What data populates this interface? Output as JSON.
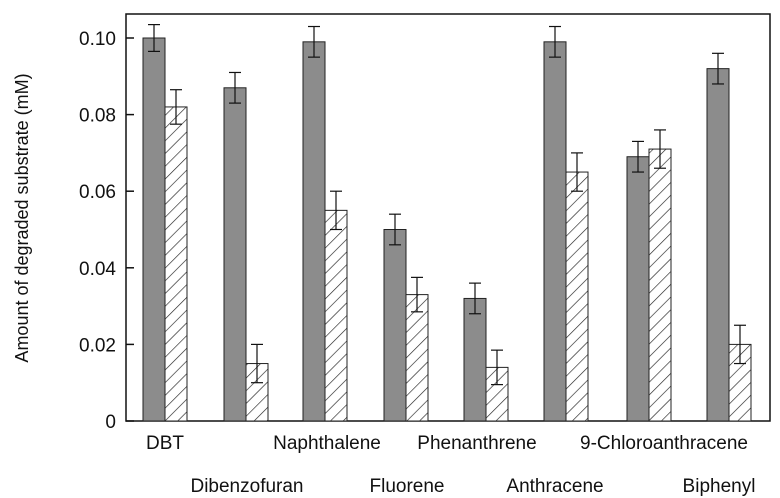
{
  "chart_data": {
    "type": "bar",
    "title": "",
    "xlabel": "",
    "ylabel": "Amount of degraded substrate (mM)",
    "ylim": [
      0,
      0.105
    ],
    "yticks": [
      "0",
      "0.02",
      "0.04",
      "0.06",
      "0.08",
      "0.10"
    ],
    "ytick_values": [
      0,
      0.02,
      0.04,
      0.06,
      0.08,
      0.1
    ],
    "grid": false,
    "legend": "none",
    "categories": [
      "DBT",
      "Dibenzofuran",
      "Naphthalene",
      "Fluorene",
      "Phenanthrene",
      "Anthracene",
      "9-Chloroanthracene",
      "Biphenyl"
    ],
    "series": [
      {
        "fill": "solid",
        "color": "#8c8c8c",
        "values": [
          0.1,
          0.087,
          0.099,
          0.05,
          0.032,
          0.099,
          0.069,
          0.092
        ],
        "errors": [
          0.0035,
          0.004,
          0.004,
          0.004,
          0.004,
          0.004,
          0.004,
          0.004
        ]
      },
      {
        "fill": "hatched",
        "color": "#ffffff",
        "values": [
          0.082,
          0.015,
          0.055,
          0.033,
          0.014,
          0.065,
          0.071,
          0.02
        ],
        "errors": [
          0.0045,
          0.005,
          0.005,
          0.0045,
          0.0045,
          0.005,
          0.005,
          0.005
        ]
      }
    ]
  }
}
